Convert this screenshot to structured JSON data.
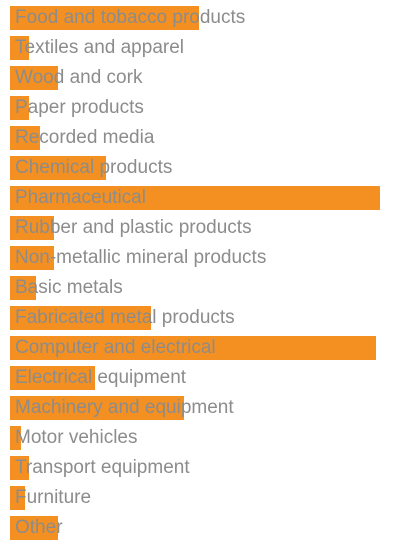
{
  "colors": {
    "bar": "#f39021",
    "label": "#8c8c8c",
    "background": "#ffffff"
  },
  "chart_data": {
    "type": "bar",
    "orientation": "horizontal",
    "title": "",
    "xlabel": "",
    "ylabel": "",
    "grid": false,
    "legend": "none",
    "categories": [
      "Food and tobacco products",
      "Textiles and apparel",
      "Wood and cork",
      "Paper products",
      "Recorded media",
      "Chemical products",
      "Pharmaceutical",
      "Rubber and plastic products",
      "Non-metallic mineral products",
      "Basic metals",
      "Fabricated metal products",
      "Computer and electrical",
      "Electrical equipment",
      "Machinery and equipment",
      "Motor vehicles",
      "Transport equipment",
      "Furniture",
      "Other"
    ],
    "values": [
      51,
      5,
      13,
      5,
      8,
      26,
      100,
      12,
      12,
      7,
      38,
      99,
      23,
      47,
      3,
      5,
      4,
      13
    ],
    "xlim": [
      0,
      100
    ]
  }
}
